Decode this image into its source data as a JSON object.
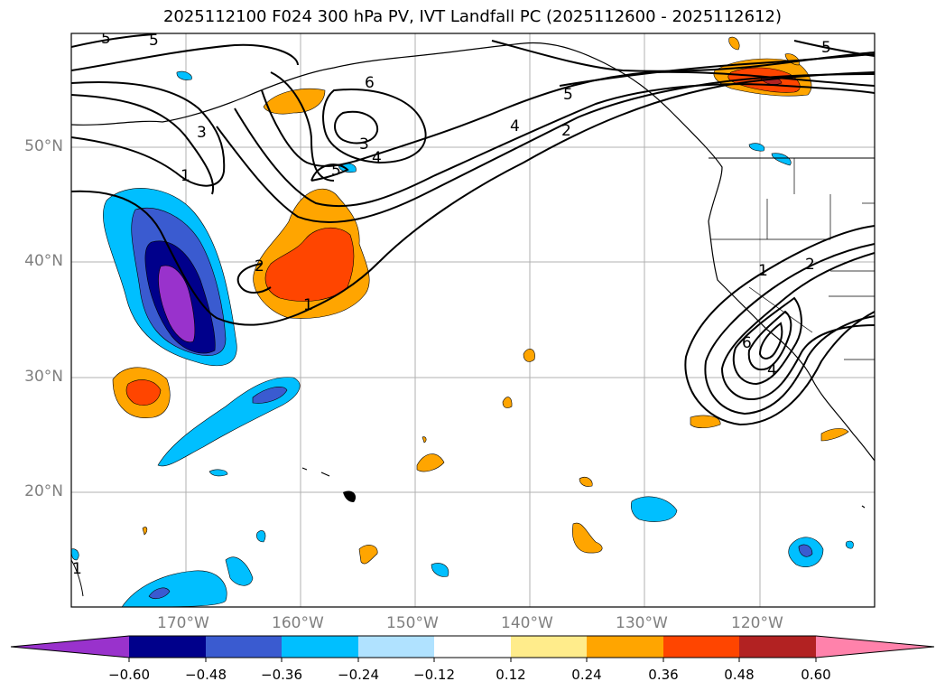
{
  "title": "2025112100 F024 300 hPa PV, IVT Landfall PC (2025112600 - 2025112612)",
  "map": {
    "lat_labels": [
      "50°N",
      "40°N",
      "30°N",
      "20°N"
    ],
    "lon_labels": [
      "170°W",
      "160°W",
      "150°W",
      "140°W",
      "130°W",
      "120°W"
    ],
    "contour_labels": [
      "5",
      "5",
      "6",
      "5",
      "3",
      "4",
      "5",
      "4",
      "2",
      "1",
      "2",
      "1",
      "3",
      "5",
      "1",
      "2",
      "6",
      "4",
      "1"
    ]
  },
  "colorbar": {
    "ticks": [
      "−0.60",
      "−0.48",
      "−0.36",
      "−0.24",
      "−0.12",
      "0.12",
      "0.24",
      "0.36",
      "0.48",
      "0.60"
    ],
    "colors": [
      "#9932cc",
      "#00008b",
      "#3a5bd0",
      "#00bfff",
      "#b0e2ff",
      "#ffffff",
      "#ffec8b",
      "#ffa500",
      "#ff4500",
      "#b22222",
      "#ff82ab"
    ]
  }
}
